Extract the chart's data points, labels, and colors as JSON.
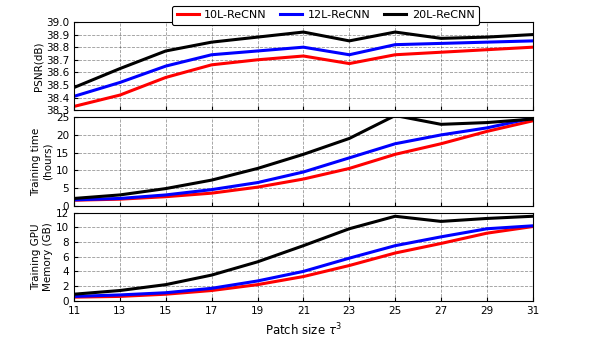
{
  "x": [
    11,
    13,
    15,
    17,
    19,
    21,
    23,
    25,
    27,
    29,
    31
  ],
  "psnr_10L": [
    38.33,
    38.42,
    38.56,
    38.66,
    38.7,
    38.73,
    38.67,
    38.74,
    38.76,
    38.78,
    38.8
  ],
  "psnr_12L": [
    38.41,
    38.52,
    38.65,
    38.74,
    38.77,
    38.8,
    38.74,
    38.82,
    38.83,
    38.84,
    38.85
  ],
  "psnr_20L": [
    38.48,
    38.63,
    38.77,
    38.84,
    38.88,
    38.92,
    38.85,
    38.92,
    38.87,
    38.88,
    38.9
  ],
  "time_10L": [
    1.5,
    1.8,
    2.5,
    3.5,
    5.2,
    7.5,
    10.5,
    14.5,
    17.5,
    21.0,
    24.0
  ],
  "time_12L": [
    1.6,
    2.0,
    3.0,
    4.5,
    6.5,
    9.5,
    13.5,
    17.5,
    20.0,
    22.0,
    24.8
  ],
  "time_20L": [
    2.0,
    3.0,
    4.8,
    7.2,
    10.5,
    14.5,
    19.0,
    25.5,
    23.0,
    23.5,
    24.5
  ],
  "mem_10L": [
    0.5,
    0.6,
    0.9,
    1.4,
    2.2,
    3.3,
    4.8,
    6.5,
    7.8,
    9.2,
    10.1
  ],
  "mem_12L": [
    0.6,
    0.8,
    1.1,
    1.7,
    2.7,
    4.0,
    5.8,
    7.5,
    8.7,
    9.8,
    10.2
  ],
  "mem_20L": [
    0.9,
    1.4,
    2.2,
    3.5,
    5.3,
    7.5,
    9.8,
    11.5,
    10.8,
    11.2,
    11.5
  ],
  "color_10L": "#ff0000",
  "color_12L": "#0000ff",
  "color_20L": "#000000",
  "legend_labels": [
    "10L-ReCNN",
    "12L-ReCNN",
    "20L-ReCNN"
  ],
  "xlabel": "Patch size $\\tau^3$",
  "ylabel1": "PSNR(dB)",
  "ylabel2": "Training time\n(hours)",
  "ylabel3": "Training GPU\nMemory (GB)",
  "ylim1": [
    38.3,
    39.0
  ],
  "ylim2": [
    0,
    25
  ],
  "ylim3": [
    0,
    12
  ],
  "yticks1": [
    38.3,
    38.4,
    38.5,
    38.6,
    38.7,
    38.8,
    38.9,
    39.0
  ],
  "yticks2": [
    0,
    5,
    10,
    15,
    20,
    25
  ],
  "yticks3": [
    0,
    2,
    4,
    6,
    8,
    10,
    12
  ],
  "xticks": [
    11,
    13,
    15,
    17,
    19,
    21,
    23,
    25,
    27,
    29,
    31
  ],
  "linewidth": 2.2,
  "background_color": "#ffffff"
}
